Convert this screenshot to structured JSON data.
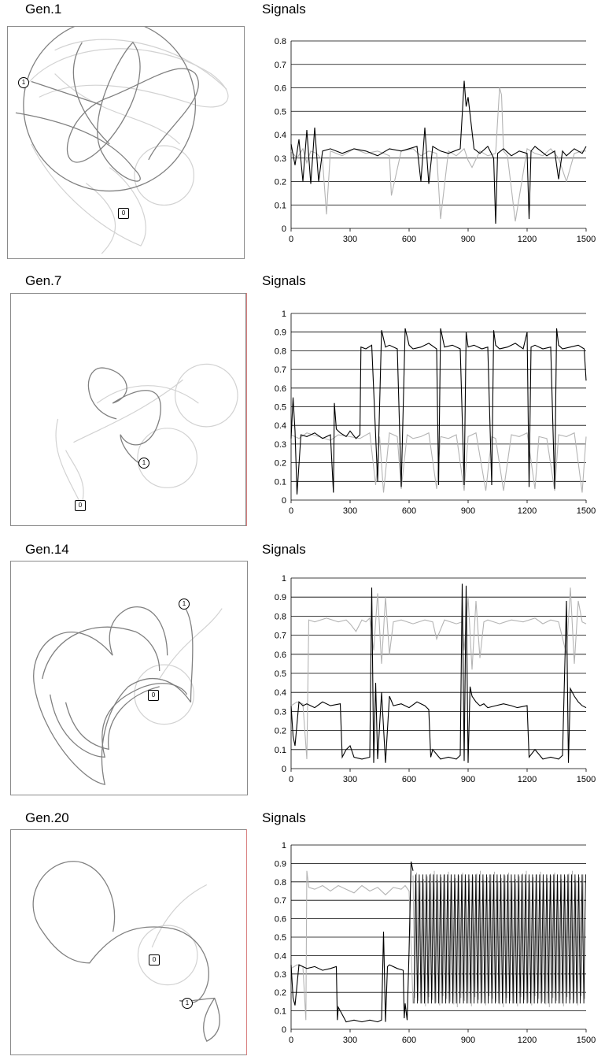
{
  "panels": [
    {
      "generation_label": "Gen.1",
      "signals_title": "Signals",
      "robot_marker": "1",
      "goal_marker": "0"
    },
    {
      "generation_label": "Gen.7",
      "signals_title": "Signals",
      "robot_marker": "1",
      "goal_marker": "0"
    },
    {
      "generation_label": "Gen.14",
      "signals_title": "Signals",
      "robot_marker": "1",
      "goal_marker": "0"
    },
    {
      "generation_label": "Gen.20",
      "signals_title": "Signals",
      "robot_marker": "1",
      "goal_marker": "0"
    }
  ],
  "colors": {
    "black_series": "#000000",
    "gray_series": "#b4b4b4",
    "grid": "#000000"
  },
  "chart_data": [
    {
      "type": "line",
      "title": "Signals",
      "xlim": [
        0,
        1500
      ],
      "ylim": [
        0,
        0.8
      ],
      "x_ticks": [
        0,
        300,
        600,
        900,
        1200,
        1500
      ],
      "y_ticks": [
        0,
        0.1,
        0.2,
        0.3,
        0.4,
        0.5,
        0.6,
        0.7,
        0.8
      ],
      "y_tick_labels": [
        "0",
        "0.1",
        "0.2",
        "0.3",
        "0.4",
        "0.5",
        "0.6",
        "0.7",
        "0.8"
      ],
      "grid": "horizontal",
      "series": [
        {
          "color": "gray",
          "x": [
            0,
            30,
            60,
            80,
            100,
            130,
            160,
            180,
            200,
            260,
            320,
            380,
            440,
            500,
            510,
            560,
            620,
            660,
            700,
            740,
            760,
            800,
            840,
            880,
            900,
            920,
            960,
            1000,
            1040,
            1060,
            1070,
            1080,
            1100,
            1140,
            1200,
            1240,
            1280,
            1320,
            1360,
            1400,
            1440,
            1480,
            1500
          ],
          "y": [
            0.33,
            0.3,
            0.34,
            0.28,
            0.33,
            0.32,
            0.29,
            0.06,
            0.33,
            0.31,
            0.34,
            0.32,
            0.33,
            0.31,
            0.14,
            0.33,
            0.34,
            0.31,
            0.33,
            0.32,
            0.04,
            0.33,
            0.31,
            0.34,
            0.29,
            0.26,
            0.33,
            0.31,
            0.32,
            0.6,
            0.57,
            0.33,
            0.31,
            0.03,
            0.34,
            0.32,
            0.31,
            0.34,
            0.3,
            0.2,
            0.32,
            0.33,
            0.33
          ]
        },
        {
          "color": "black",
          "x": [
            0,
            20,
            40,
            60,
            80,
            100,
            120,
            140,
            160,
            200,
            260,
            320,
            380,
            440,
            500,
            560,
            640,
            660,
            680,
            700,
            720,
            760,
            800,
            860,
            880,
            890,
            900,
            930,
            960,
            1000,
            1030,
            1040,
            1050,
            1080,
            1120,
            1160,
            1200,
            1210,
            1220,
            1240,
            1300,
            1340,
            1360,
            1380,
            1400,
            1440,
            1480,
            1500
          ],
          "y": [
            0.36,
            0.27,
            0.38,
            0.2,
            0.42,
            0.19,
            0.43,
            0.2,
            0.33,
            0.34,
            0.32,
            0.34,
            0.33,
            0.31,
            0.34,
            0.33,
            0.35,
            0.2,
            0.43,
            0.19,
            0.35,
            0.33,
            0.32,
            0.34,
            0.63,
            0.52,
            0.56,
            0.34,
            0.32,
            0.35,
            0.3,
            0.02,
            0.32,
            0.34,
            0.31,
            0.33,
            0.32,
            0.04,
            0.33,
            0.35,
            0.31,
            0.33,
            0.21,
            0.33,
            0.31,
            0.34,
            0.32,
            0.35
          ]
        }
      ]
    },
    {
      "type": "line",
      "title": "Signals",
      "xlim": [
        0,
        1500
      ],
      "ylim": [
        0,
        1
      ],
      "x_ticks": [
        0,
        300,
        600,
        900,
        1200,
        1500
      ],
      "y_ticks": [
        0,
        0.1,
        0.2,
        0.3,
        0.4,
        0.5,
        0.6,
        0.7,
        0.8,
        0.9,
        1
      ],
      "y_tick_labels": [
        "0",
        "0.1",
        "0.2",
        "0.3",
        "0.4",
        "0.5",
        "0.6",
        "0.7",
        "0.8",
        "0.9",
        "1"
      ],
      "grid": "horizontal",
      "series": [
        {
          "color": "gray",
          "x": [
            0,
            40,
            80,
            140,
            200,
            240,
            300,
            350,
            400,
            430,
            450,
            470,
            500,
            540,
            560,
            590,
            620,
            660,
            700,
            740,
            760,
            800,
            840,
            880,
            900,
            940,
            990,
            1020,
            1040,
            1080,
            1120,
            1160,
            1200,
            1240,
            1260,
            1300,
            1340,
            1360,
            1400,
            1440,
            1480,
            1500
          ],
          "y": [
            0.35,
            0.33,
            0.36,
            0.34,
            0.32,
            0.35,
            0.34,
            0.33,
            0.36,
            0.08,
            0.34,
            0.04,
            0.36,
            0.34,
            0.06,
            0.35,
            0.33,
            0.34,
            0.36,
            0.06,
            0.34,
            0.33,
            0.35,
            0.05,
            0.34,
            0.36,
            0.05,
            0.34,
            0.33,
            0.05,
            0.35,
            0.34,
            0.36,
            0.06,
            0.34,
            0.33,
            0.05,
            0.35,
            0.34,
            0.36,
            0.04,
            0.34
          ]
        },
        {
          "color": "black",
          "x": [
            0,
            10,
            20,
            30,
            50,
            80,
            120,
            160,
            200,
            215,
            220,
            230,
            250,
            280,
            300,
            330,
            350,
            355,
            380,
            410,
            440,
            460,
            480,
            500,
            540,
            560,
            580,
            600,
            620,
            660,
            700,
            740,
            750,
            760,
            780,
            820,
            860,
            880,
            890,
            900,
            930,
            970,
            1000,
            1020,
            1030,
            1040,
            1060,
            1100,
            1140,
            1180,
            1200,
            1210,
            1220,
            1240,
            1280,
            1320,
            1340,
            1350,
            1360,
            1380,
            1420,
            1460,
            1490,
            1500
          ],
          "y": [
            0.33,
            0.55,
            0.37,
            0.03,
            0.35,
            0.34,
            0.36,
            0.33,
            0.35,
            0.04,
            0.52,
            0.38,
            0.36,
            0.34,
            0.37,
            0.33,
            0.35,
            0.82,
            0.81,
            0.83,
            0.1,
            0.91,
            0.82,
            0.83,
            0.81,
            0.07,
            0.92,
            0.83,
            0.81,
            0.82,
            0.84,
            0.81,
            0.08,
            0.92,
            0.82,
            0.83,
            0.81,
            0.08,
            0.9,
            0.82,
            0.83,
            0.81,
            0.82,
            0.08,
            0.91,
            0.83,
            0.81,
            0.82,
            0.84,
            0.81,
            0.9,
            0.07,
            0.82,
            0.83,
            0.81,
            0.82,
            0.06,
            0.92,
            0.83,
            0.81,
            0.82,
            0.83,
            0.81,
            0.64
          ]
        }
      ]
    },
    {
      "type": "line",
      "title": "Signals",
      "xlim": [
        0,
        1500
      ],
      "ylim": [
        0,
        1
      ],
      "x_ticks": [
        0,
        300,
        600,
        900,
        1200,
        1500
      ],
      "y_ticks": [
        0,
        0.1,
        0.2,
        0.3,
        0.4,
        0.5,
        0.6,
        0.7,
        0.8,
        0.9,
        1
      ],
      "y_tick_labels": [
        "0",
        "0.1",
        "0.2",
        "0.3",
        "0.4",
        "0.5",
        "0.6",
        "0.7",
        "0.8",
        "0.9",
        "1"
      ],
      "grid": "horizontal",
      "series": [
        {
          "color": "gray",
          "x": [
            0,
            30,
            60,
            80,
            90,
            120,
            180,
            240,
            280,
            300,
            330,
            360,
            380,
            400,
            420,
            440,
            460,
            480,
            500,
            520,
            560,
            620,
            680,
            720,
            740,
            780,
            840,
            870,
            880,
            900,
            920,
            940,
            960,
            980,
            1000,
            1060,
            1120,
            1180,
            1240,
            1280,
            1320,
            1360,
            1400,
            1420,
            1440,
            1460,
            1480,
            1500
          ],
          "y": [
            0.33,
            0.35,
            0.34,
            0.05,
            0.78,
            0.77,
            0.79,
            0.77,
            0.78,
            0.76,
            0.72,
            0.78,
            0.77,
            0.79,
            0.62,
            0.92,
            0.55,
            0.9,
            0.6,
            0.77,
            0.78,
            0.76,
            0.78,
            0.77,
            0.68,
            0.78,
            0.76,
            0.77,
            0.62,
            0.9,
            0.52,
            0.88,
            0.58,
            0.77,
            0.78,
            0.76,
            0.78,
            0.77,
            0.79,
            0.76,
            0.78,
            0.77,
            0.6,
            0.95,
            0.55,
            0.88,
            0.77,
            0.76
          ]
        },
        {
          "color": "black",
          "x": [
            0,
            10,
            20,
            40,
            60,
            80,
            120,
            160,
            200,
            250,
            260,
            280,
            300,
            320,
            360,
            400,
            410,
            420,
            430,
            440,
            460,
            480,
            500,
            520,
            560,
            600,
            640,
            680,
            700,
            710,
            720,
            760,
            800,
            840,
            860,
            870,
            880,
            890,
            900,
            910,
            920,
            940,
            960,
            980,
            1000,
            1040,
            1080,
            1120,
            1150,
            1200,
            1210,
            1240,
            1280,
            1320,
            1360,
            1380,
            1400,
            1410,
            1420,
            1440,
            1460,
            1480,
            1500
          ],
          "y": [
            0.33,
            0.17,
            0.12,
            0.35,
            0.33,
            0.34,
            0.32,
            0.35,
            0.33,
            0.34,
            0.06,
            0.1,
            0.12,
            0.06,
            0.05,
            0.06,
            0.95,
            0.03,
            0.45,
            0.05,
            0.4,
            0.03,
            0.38,
            0.33,
            0.34,
            0.32,
            0.35,
            0.33,
            0.31,
            0.06,
            0.1,
            0.05,
            0.06,
            0.05,
            0.07,
            0.97,
            0.04,
            0.96,
            0.03,
            0.43,
            0.38,
            0.35,
            0.33,
            0.34,
            0.32,
            0.33,
            0.34,
            0.33,
            0.32,
            0.33,
            0.06,
            0.1,
            0.05,
            0.06,
            0.05,
            0.07,
            0.88,
            0.03,
            0.42,
            0.38,
            0.35,
            0.33,
            0.32
          ]
        }
      ]
    },
    {
      "type": "line",
      "title": "Signals",
      "xlim": [
        0,
        1500
      ],
      "ylim": [
        0,
        1
      ],
      "x_ticks": [
        0,
        300,
        600,
        900,
        1200,
        1500
      ],
      "y_ticks": [
        0,
        0.1,
        0.2,
        0.3,
        0.4,
        0.5,
        0.6,
        0.7,
        0.8,
        0.9,
        1
      ],
      "y_tick_labels": [
        "0",
        "0.1",
        "0.2",
        "0.3",
        "0.4",
        "0.5",
        "0.6",
        "0.7",
        "0.8",
        "0.9",
        "1"
      ],
      "grid": "horizontal",
      "series": [
        {
          "color": "gray",
          "x": [
            0,
            30,
            60,
            75,
            80,
            90,
            120,
            160,
            200,
            240,
            280,
            320,
            360,
            400,
            440,
            480,
            520,
            560,
            580,
            600,
            620
          ],
          "y": [
            0.33,
            0.35,
            0.34,
            0.05,
            0.86,
            0.77,
            0.76,
            0.78,
            0.75,
            0.78,
            0.76,
            0.74,
            0.78,
            0.75,
            0.77,
            0.73,
            0.77,
            0.76,
            0.78,
            0.75,
            0.14
          ]
        },
        {
          "color": "black",
          "x": [
            0,
            10,
            20,
            40,
            80,
            120,
            160,
            200,
            230,
            235,
            240,
            280,
            320,
            360,
            400,
            440,
            460,
            470,
            480,
            490,
            500,
            540,
            570,
            575,
            580,
            590,
            600,
            610,
            620
          ],
          "y": [
            0.35,
            0.17,
            0.13,
            0.35,
            0.33,
            0.34,
            0.32,
            0.33,
            0.34,
            0.05,
            0.12,
            0.04,
            0.05,
            0.04,
            0.05,
            0.04,
            0.05,
            0.53,
            0.04,
            0.34,
            0.35,
            0.33,
            0.32,
            0.06,
            0.14,
            0.05,
            0.43,
            0.91,
            0.86
          ]
        },
        {
          "color": "oscillation",
          "x_start": 620,
          "x_end": 1500,
          "period": 18,
          "high": 0.86,
          "low": 0.12
        }
      ]
    }
  ]
}
